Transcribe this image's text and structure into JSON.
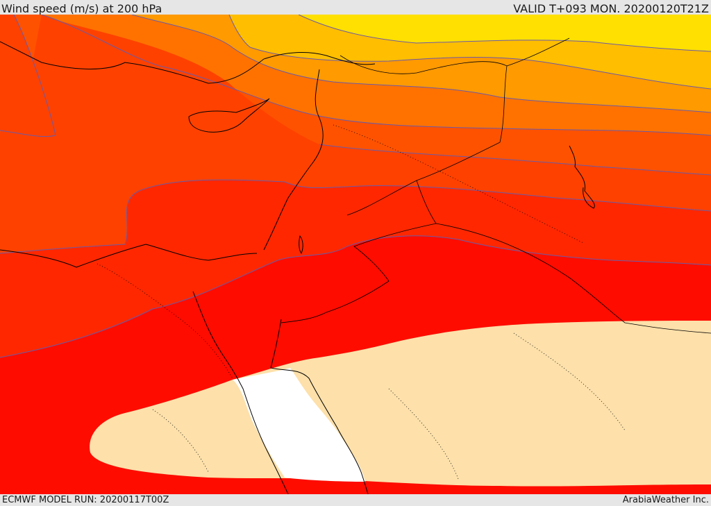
{
  "header": {
    "title": "Wind speed (m/s) at 200 hPa",
    "valid_time": "VALID T+093 MON. 20200120T21Z"
  },
  "footer": {
    "model_run": "ECMWF MODEL RUN: 20200117T00Z",
    "credit": "ArabiaWeather Inc."
  },
  "colors": {
    "band_1": "#ffe000",
    "band_2": "#ffbe00",
    "band_3": "#ff9a00",
    "band_4": "#ff7200",
    "band_5": "#ff5200",
    "band_6": "#ff4100",
    "band_7": "#ff2700",
    "band_8": "#ff0c00",
    "low_wind": "#fde0aa",
    "masked": "#ffffff",
    "contour": "#6a5aa8",
    "coastline": "#000000"
  }
}
